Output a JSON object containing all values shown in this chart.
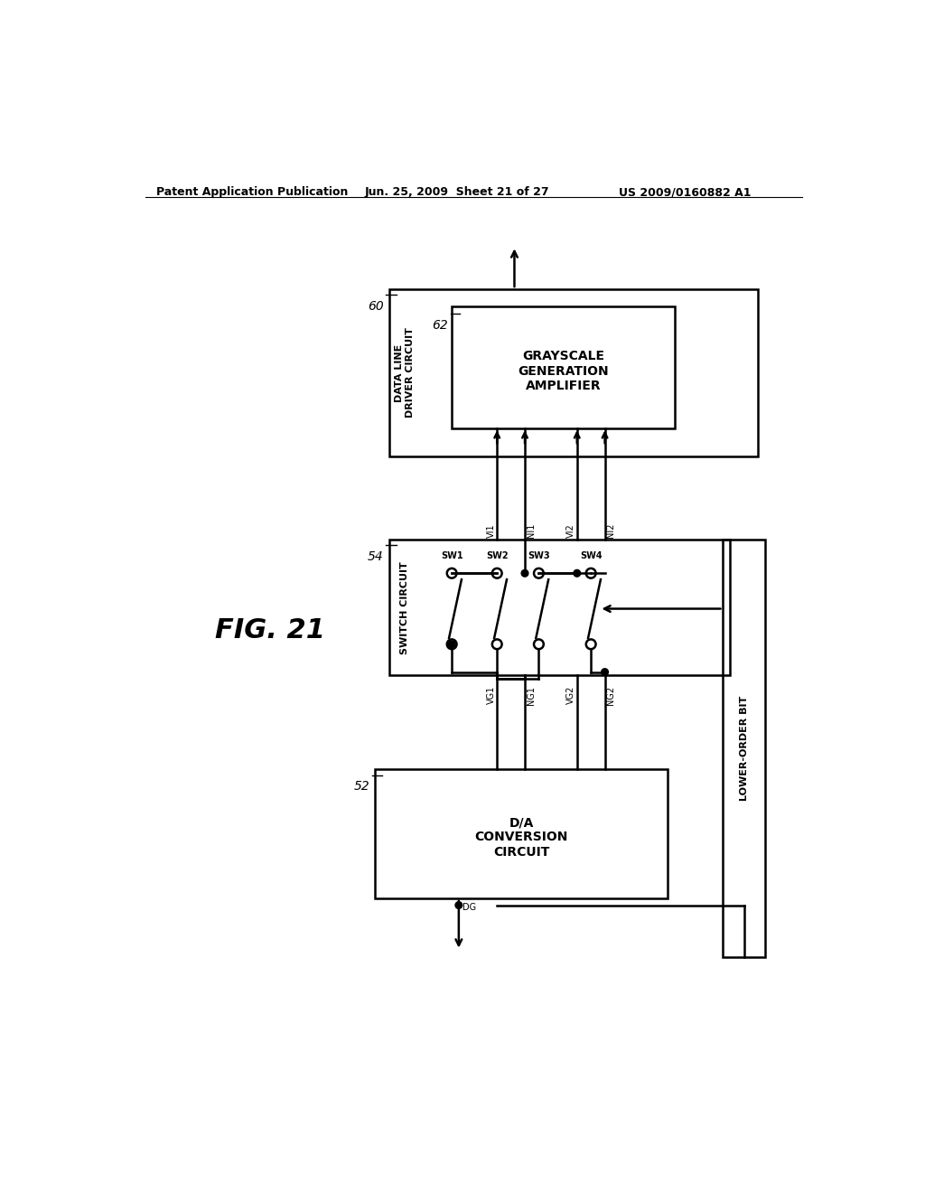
{
  "bg_color": "#ffffff",
  "header_left": "Patent Application Publication",
  "header_mid": "Jun. 25, 2009  Sheet 21 of 27",
  "header_right": "US 2009/0160882 A1",
  "fig_label": "FIG. 21",
  "box60_label": "DATA LINE\nDRIVER CIRCUIT",
  "box60_ref": "60",
  "box62_label": "GRAYSCALE\nGENERATION\nAMPLIFIER",
  "box62_ref": "62",
  "box54_label": "SWITCH CIRCUIT",
  "box54_ref": "54",
  "box52_label": "D/A\nCONVERSION\nCIRCUIT",
  "box52_ref": "52",
  "lower_order_bit_label": "LOWER-ORDER BIT",
  "line_color": "#000000",
  "dot_color": "#000000"
}
